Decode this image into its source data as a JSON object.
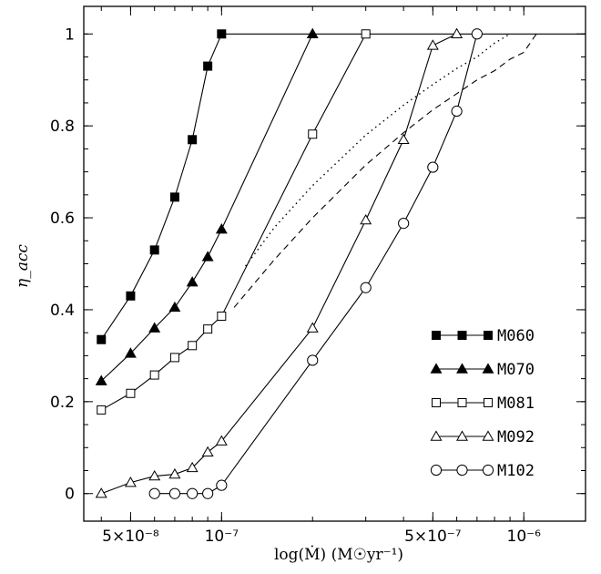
{
  "chart_data": {
    "type": "line",
    "title": "",
    "xlabel": "log(Ṁ)  (M☉yr⁻¹)",
    "ylabel": "η_acc",
    "xscale": "log",
    "xlim": [
      3.5e-08,
      1.6e-06
    ],
    "ylim": [
      -0.06,
      1.06
    ],
    "grid": false,
    "legend_position": "bottom-right",
    "x_ticks": [
      {
        "value": 5e-08,
        "label": "5×10⁻⁸"
      },
      {
        "value": 1e-07,
        "label": "10⁻⁷"
      },
      {
        "value": 5e-07,
        "label": "5×10⁻⁷"
      },
      {
        "value": 1e-06,
        "label": "10⁻⁶"
      }
    ],
    "y_ticks": [
      {
        "value": 0,
        "label": "0"
      },
      {
        "value": 0.2,
        "label": "0.2"
      },
      {
        "value": 0.4,
        "label": "0.4"
      },
      {
        "value": 0.6,
        "label": "0.6"
      },
      {
        "value": 0.8,
        "label": "0.8"
      },
      {
        "value": 1,
        "label": "1"
      }
    ],
    "series": [
      {
        "name": "M060",
        "marker": "filled-square",
        "x": [
          4e-08,
          5e-08,
          6e-08,
          7e-08,
          8e-08,
          9e-08,
          1e-07,
          1.6e-06
        ],
        "y": [
          0.335,
          0.43,
          0.53,
          0.645,
          0.77,
          0.93,
          1.0,
          1.0
        ],
        "marker_count": 7
      },
      {
        "name": "M070",
        "marker": "filled-triangle",
        "x": [
          4e-08,
          5e-08,
          6e-08,
          7e-08,
          8e-08,
          9e-08,
          1e-07,
          2e-07
        ],
        "y": [
          0.245,
          0.305,
          0.36,
          0.405,
          0.46,
          0.515,
          0.575,
          1.0
        ],
        "marker_count": 8
      },
      {
        "name": "M081",
        "marker": "open-square",
        "x": [
          4e-08,
          5e-08,
          6e-08,
          7e-08,
          8e-08,
          9e-08,
          1e-07,
          2e-07,
          3e-07
        ],
        "y": [
          0.182,
          0.218,
          0.258,
          0.296,
          0.322,
          0.358,
          0.386,
          0.782,
          1.0
        ],
        "marker_count": 9
      },
      {
        "name": "M092",
        "marker": "open-triangle",
        "x": [
          4e-08,
          5e-08,
          6e-08,
          7e-08,
          8e-08,
          9e-08,
          1e-07,
          2e-07,
          3e-07,
          4e-07,
          5e-07,
          6e-07
        ],
        "y": [
          0.0,
          0.024,
          0.038,
          0.042,
          0.056,
          0.09,
          0.114,
          0.36,
          0.595,
          0.77,
          0.975,
          1.0
        ],
        "marker_count": 12
      },
      {
        "name": "M102",
        "marker": "open-circle",
        "x": [
          6e-08,
          7e-08,
          8e-08,
          9e-08,
          1e-07,
          2e-07,
          3e-07,
          4e-07,
          5e-07,
          6e-07,
          7e-07
        ],
        "y": [
          0.0,
          0.0,
          0.0,
          0.0,
          0.018,
          0.29,
          0.448,
          0.588,
          0.71,
          0.832,
          1.0
        ],
        "marker_count": 11
      },
      {
        "name": "dotted curve",
        "marker": "none",
        "style": "dotted",
        "x": [
          1.2e-07,
          1.5e-07,
          2e-07,
          3e-07,
          4e-07,
          5e-07,
          6e-07,
          7e-07,
          8e-07,
          9e-07
        ],
        "y": [
          0.495,
          0.58,
          0.67,
          0.78,
          0.845,
          0.89,
          0.925,
          0.95,
          0.98,
          1.0
        ]
      },
      {
        "name": "dashed curve",
        "marker": "none",
        "style": "dashed",
        "x": [
          1.1e-07,
          1.5e-07,
          2e-07,
          3e-07,
          4e-07,
          5e-07,
          6e-07,
          7e-07,
          8e-07,
          9e-07,
          1e-06,
          1.1e-06
        ],
        "y": [
          0.405,
          0.51,
          0.6,
          0.715,
          0.785,
          0.835,
          0.87,
          0.9,
          0.92,
          0.945,
          0.96,
          1.0
        ]
      }
    ],
    "legend": [
      "M060",
      "M070",
      "M081",
      "M092",
      "M102"
    ]
  }
}
